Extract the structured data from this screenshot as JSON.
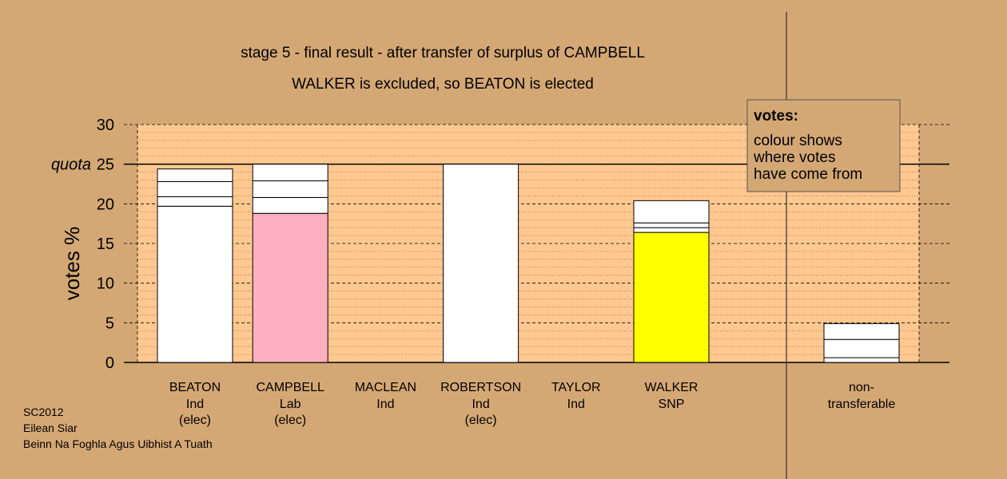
{
  "chart_data": {
    "type": "bar",
    "title": "stage 5 - final result - after transfer of surplus of CAMPBELL",
    "subtitle": "WALKER is excluded, so BEATON is elected",
    "ylabel": "votes %",
    "ylim": [
      0,
      30
    ],
    "yticks": [
      "0",
      "5",
      "10",
      "15",
      "20",
      "25",
      "30"
    ],
    "quota_label": "quota",
    "quota_value": 25,
    "grid": true,
    "legend_position": "top-right",
    "legend": {
      "title": "votes:",
      "lines": [
        "colour shows",
        "where votes",
        "have come from"
      ]
    },
    "categories": [
      {
        "name": "BEATON",
        "party": "Ind",
        "status": "(elec)",
        "total": 24.5,
        "segments": [
          {
            "value": 19.7,
            "color": "#ffffff"
          },
          {
            "value": 1.2,
            "color": "#ffffff"
          },
          {
            "value": 1.9,
            "color": "#ffffff"
          },
          {
            "value": 1.6,
            "color": "#ffffff"
          }
        ]
      },
      {
        "name": "CAMPBELL",
        "party": "Lab",
        "status": "(elec)",
        "total": 25.0,
        "segments": [
          {
            "value": 18.8,
            "color": "#ffb0c0"
          },
          {
            "value": 2.0,
            "color": "#ffffff"
          },
          {
            "value": 2.1,
            "color": "#ffffff"
          },
          {
            "value": 2.1,
            "color": "#ffffff"
          }
        ]
      },
      {
        "name": "MACLEAN",
        "party": "Ind",
        "status": "",
        "total": 0,
        "segments": []
      },
      {
        "name": "ROBERTSON",
        "party": "Ind",
        "status": "(elec)",
        "total": 25.0,
        "segments": [
          {
            "value": 25.0,
            "color": "#ffffff"
          }
        ]
      },
      {
        "name": "TAYLOR",
        "party": "Ind",
        "status": "",
        "total": 0,
        "segments": []
      },
      {
        "name": "WALKER",
        "party": "SNP",
        "status": "",
        "total": 20.4,
        "segments": [
          {
            "value": 16.4,
            "color": "#ffff00"
          },
          {
            "value": 0.6,
            "color": "#ffffff"
          },
          {
            "value": 0.6,
            "color": "#ffffff"
          },
          {
            "value": 2.8,
            "color": "#ffffff"
          }
        ]
      }
    ],
    "nontransferable": {
      "label_lines": [
        "non-",
        "transferable"
      ],
      "total": 4.9,
      "segments": [
        {
          "value": 0.6,
          "color": "#ffffff"
        },
        {
          "value": 2.3,
          "color": "#ffffff"
        },
        {
          "value": 2.0,
          "color": "#ffffff"
        }
      ]
    }
  },
  "footer": {
    "line1": "SC2012",
    "line2": "Eilean Siar",
    "line3": "Beinn Na Foghla Agus Uibhist A Tuath"
  }
}
